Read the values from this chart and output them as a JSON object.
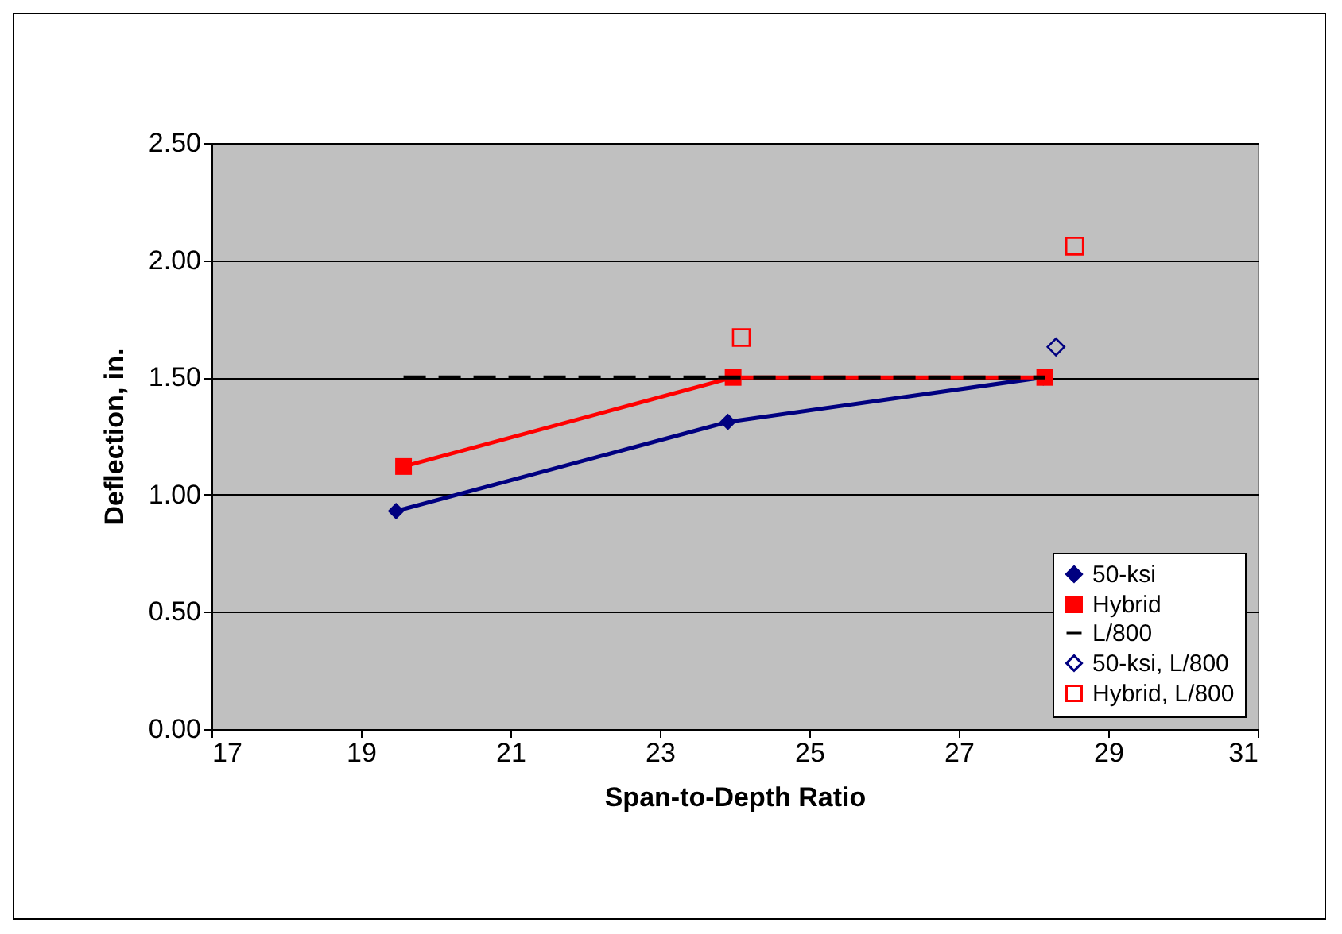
{
  "chart_data": {
    "type": "line",
    "xlabel": "Span-to-Depth Ratio",
    "ylabel": "Deflection, in.",
    "xlim": [
      17,
      31
    ],
    "xticks": [
      17,
      19,
      21,
      23,
      25,
      27,
      29,
      31
    ],
    "ylim": [
      0,
      2.5
    ],
    "yticks": [
      {
        "value": 0,
        "label": "0.00"
      },
      {
        "value": 0.5,
        "label": "0.50"
      },
      {
        "value": 1,
        "label": "1.00"
      },
      {
        "value": 1.5,
        "label": "1.50"
      },
      {
        "value": 2,
        "label": "2.00"
      },
      {
        "value": 2.5,
        "label": "2.50"
      }
    ],
    "grid": "y",
    "legend": "bottom right",
    "series": [
      {
        "name": "50-ksi",
        "color": "#000080",
        "marker": "diamond",
        "line_style": "solid",
        "x": [
          19.47,
          23.91,
          28.13
        ],
        "values": [
          0.93,
          1.31,
          1.5
        ]
      },
      {
        "name": "Hybrid",
        "color": "#ff0000",
        "marker": "square",
        "line_style": "solid",
        "x": [
          19.57,
          23.98,
          28.15
        ],
        "values": [
          1.12,
          1.5,
          1.5
        ]
      },
      {
        "name": "L/800",
        "color": "#000000",
        "marker": "none",
        "line_style": "dashed",
        "x": [
          19.57,
          28.15
        ],
        "values": [
          1.5,
          1.5
        ]
      },
      {
        "name": "50-ksi, L/800",
        "type": "scatter",
        "color": "#000080",
        "marker": "diamond",
        "x": [
          28.3
        ],
        "values": [
          1.63
        ]
      },
      {
        "name": "Hybrid, L/800",
        "type": "scatter",
        "color": "#ff0000",
        "marker": "square",
        "x": [
          24.09,
          28.55
        ],
        "values": [
          1.67,
          2.06
        ]
      }
    ]
  }
}
